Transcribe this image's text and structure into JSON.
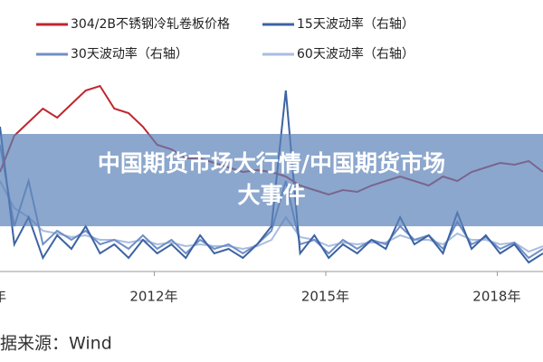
{
  "chart_data": {
    "type": "line",
    "title": "中国期货市场大行情/中国期货市场大事件",
    "note": "据来源：Wind",
    "x": [
      2009.3,
      2009.55,
      2009.8,
      2010.05,
      2010.3,
      2010.55,
      2010.8,
      2011.05,
      2011.3,
      2011.55,
      2011.8,
      2012.05,
      2012.3,
      2012.55,
      2012.8,
      2013.05,
      2013.3,
      2013.55,
      2013.8,
      2014.05,
      2014.3,
      2014.55,
      2014.8,
      2015.05,
      2015.3,
      2015.55,
      2015.8,
      2016.05,
      2016.3,
      2016.55,
      2016.8,
      2017.05,
      2017.3,
      2017.55,
      2017.8,
      2018.05,
      2018.3,
      2018.55,
      2018.8
    ],
    "xlim": [
      2009.3,
      2018.8
    ],
    "xticks": [
      {
        "value": 2009,
        "label": "年"
      },
      {
        "value": 2012,
        "label": "2012年"
      },
      {
        "value": 2015,
        "label": "2015年"
      },
      {
        "value": 2018,
        "label": "2018年"
      }
    ],
    "ylim": [
      0,
      100
    ],
    "y2lim": [
      0,
      100
    ],
    "series": [
      {
        "name": "304/2B不锈钢冷轧卷板价格",
        "color": "#c0262d",
        "values": [
          44,
          60,
          66,
          72,
          68,
          74,
          80,
          82,
          72,
          70,
          64,
          56,
          54,
          50,
          50,
          48,
          46,
          44,
          44.8,
          44,
          42,
          38,
          36,
          34,
          36,
          35.2,
          38,
          40,
          42,
          40,
          38,
          42,
          40,
          44,
          46,
          48,
          47.2,
          48.8,
          44
        ]
      },
      {
        "name": "15天波动率（右轴）",
        "color": "#3d63a3",
        "axis": "y2",
        "values": [
          64,
          12,
          24,
          6,
          16,
          10,
          20,
          8,
          12,
          6,
          14,
          8,
          12,
          6,
          16,
          8,
          10,
          6,
          12,
          20,
          80,
          8,
          16,
          6,
          12,
          8,
          14,
          10,
          24,
          12,
          16,
          8,
          26,
          10,
          16,
          8,
          12,
          4,
          8
        ]
      },
      {
        "name": "30天波动率（右轴）",
        "color": "#6f8fc6",
        "axis": "y2",
        "values": [
          56,
          20,
          40,
          12,
          18,
          14,
          18,
          12,
          14,
          10,
          16,
          10,
          14,
          8,
          14,
          10,
          12,
          8,
          12,
          18,
          40,
          12,
          14,
          8,
          14,
          10,
          14,
          12,
          20,
          14,
          16,
          10,
          22,
          12,
          15.2,
          10,
          12.8,
          6,
          10
        ]
      },
      {
        "name": "60天波动率（右轴）",
        "color": "#a9bde0",
        "axis": "y2",
        "values": [
          40,
          28,
          24,
          18,
          16.8,
          15.2,
          16,
          14,
          14,
          12.8,
          14,
          12,
          12.8,
          11.2,
          12,
          11.2,
          11.2,
          10,
          11.2,
          14,
          24,
          15.2,
          14,
          11.2,
          12.8,
          12,
          12.8,
          12.8,
          16,
          14,
          14,
          12,
          16.8,
          14,
          14,
          12,
          12.8,
          8.8,
          11.2
        ]
      }
    ]
  }
}
